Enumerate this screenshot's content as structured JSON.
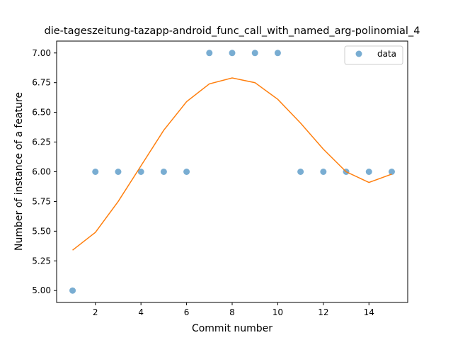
{
  "chart_data": {
    "type": "scatter",
    "title": "die-tageszeitung-tazapp-android_func_call_with_named_arg-polinomial_4",
    "xlabel": "Commit number",
    "ylabel": "Number of instance of a feature",
    "xlim": [
      0.3,
      15.7
    ],
    "ylim": [
      4.9,
      7.1
    ],
    "xticks": [
      2,
      4,
      6,
      8,
      10,
      12,
      14
    ],
    "yticks": [
      5.0,
      5.25,
      5.5,
      5.75,
      6.0,
      6.25,
      6.5,
      6.75,
      7.0
    ],
    "ytick_labels": [
      "5.00",
      "5.25",
      "5.50",
      "5.75",
      "6.00",
      "6.25",
      "6.50",
      "6.75",
      "7.00"
    ],
    "grid": false,
    "legend_position": "top-right",
    "series": [
      {
        "name": "data",
        "kind": "scatter",
        "color": "#1f77b4",
        "x": [
          1,
          2,
          3,
          4,
          5,
          6,
          7,
          8,
          9,
          10,
          11,
          12,
          13,
          14,
          15
        ],
        "y": [
          5,
          6,
          6,
          6,
          6,
          6,
          7,
          7,
          7,
          7,
          6,
          6,
          6,
          6,
          6
        ]
      },
      {
        "kind": "line",
        "color": "#ff7f0e",
        "x": [
          1,
          2,
          3,
          4,
          5,
          6,
          7,
          8,
          9,
          10,
          11,
          12,
          13,
          14,
          15
        ],
        "y": [
          5.34,
          5.49,
          5.75,
          6.05,
          6.35,
          6.59,
          6.74,
          6.79,
          6.75,
          6.61,
          6.41,
          6.19,
          6.0,
          5.91,
          5.98
        ]
      }
    ]
  }
}
